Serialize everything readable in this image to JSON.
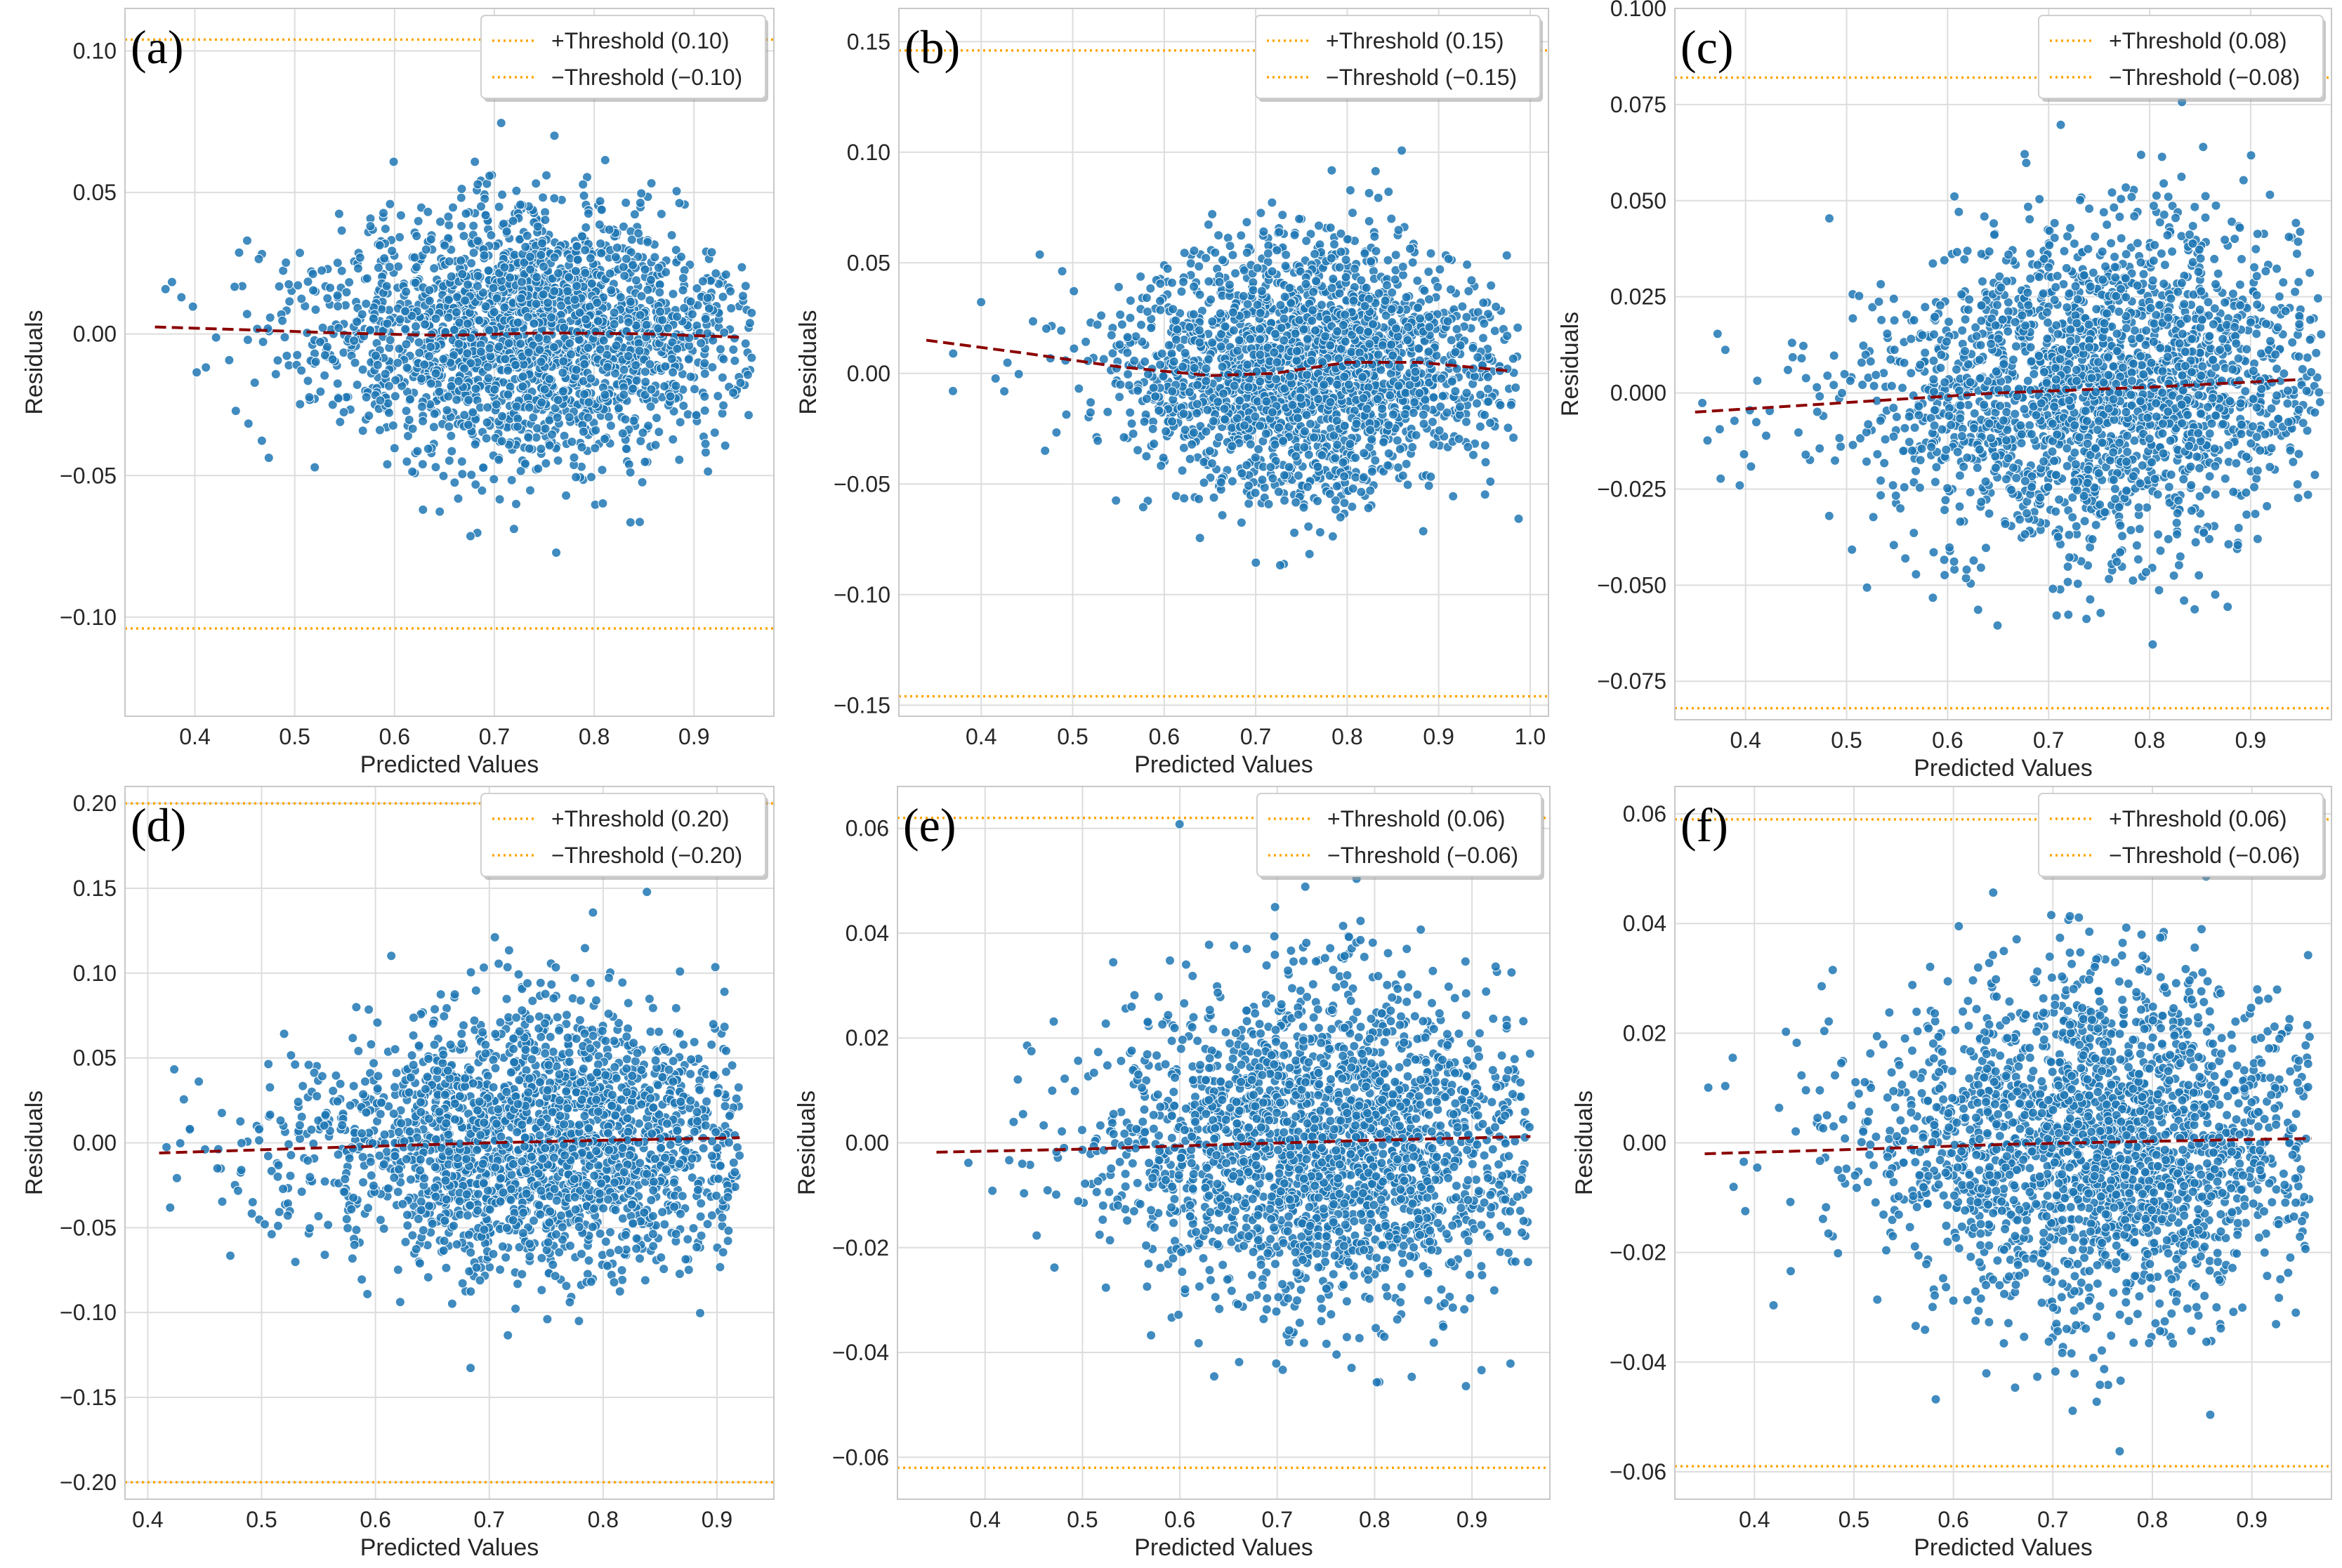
{
  "colors": {
    "points": "#1f77b4",
    "points_edge": "#ffffff",
    "trend": "#8b0000",
    "threshold": "#ffa500",
    "grid": "#dddddd",
    "frame": "#c8c8c8",
    "background": "#ffffff"
  },
  "chart_data": [
    {
      "type": "scatter",
      "panel_label": "(a)",
      "xlabel": "Predicted Values",
      "ylabel": "Residuals",
      "xlim": [
        0.33,
        0.98
      ],
      "ylim": [
        -0.135,
        0.115
      ],
      "xticks": [
        0.4,
        0.5,
        0.6,
        0.7,
        0.8,
        0.9
      ],
      "xtick_labels": [
        "0.4",
        "0.5",
        "0.6",
        "0.7",
        "0.8",
        "0.9"
      ],
      "yticks": [
        -0.1,
        -0.05,
        0.0,
        0.05,
        0.1
      ],
      "ytick_labels": [
        "−0.10",
        "−0.05",
        "0.00",
        "0.05",
        "0.10"
      ],
      "thresholds": [
        0.104,
        -0.104
      ],
      "legend": [
        "+Threshold (0.10)",
        "−Threshold (−0.10)"
      ],
      "trend": {
        "x": [
          0.36,
          0.45,
          0.55,
          0.65,
          0.75,
          0.85,
          0.95
        ],
        "y": [
          0.0025,
          0.0015,
          0.0003,
          -0.0005,
          0.0004,
          0.0001,
          -0.0012
        ]
      },
      "scatter_summary": {
        "x_center": 0.74,
        "x_spread": 0.11,
        "x_min": 0.35,
        "x_max": 0.96,
        "y_sd": 0.021,
        "count": 2200
      }
    },
    {
      "type": "scatter",
      "panel_label": "(b)",
      "xlabel": "Predicted Values",
      "ylabel": "Residuals",
      "xlim": [
        0.31,
        1.02
      ],
      "ylim": [
        -0.155,
        0.165
      ],
      "xticks": [
        0.4,
        0.5,
        0.6,
        0.7,
        0.8,
        0.9,
        1.0
      ],
      "xtick_labels": [
        "0.4",
        "0.5",
        "0.6",
        "0.7",
        "0.8",
        "0.9",
        "1.0"
      ],
      "yticks": [
        -0.15,
        -0.1,
        -0.05,
        0.0,
        0.05,
        0.1,
        0.15
      ],
      "ytick_labels": [
        "−0.15",
        "−0.10",
        "−0.05",
        "0.00",
        "0.05",
        "0.10",
        "0.15"
      ],
      "thresholds": [
        0.146,
        -0.146
      ],
      "legend": [
        "+Threshold (0.15)",
        "−Threshold (−0.15)"
      ],
      "trend": {
        "x": [
          0.34,
          0.45,
          0.55,
          0.65,
          0.72,
          0.8,
          0.88,
          0.98
        ],
        "y": [
          0.015,
          0.009,
          0.003,
          -0.001,
          0.0,
          0.005,
          0.005,
          0.001
        ]
      },
      "scatter_summary": {
        "x_center": 0.76,
        "x_spread": 0.1,
        "x_min": 0.34,
        "x_max": 0.99,
        "y_sd": 0.028,
        "count": 2200
      }
    },
    {
      "type": "scatter",
      "panel_label": "(c)",
      "xlabel": "Predicted Values",
      "ylabel": "Residuals",
      "xlim": [
        0.33,
        0.98
      ],
      "ylim": [
        -0.085,
        0.1
      ],
      "xticks": [
        0.4,
        0.5,
        0.6,
        0.7,
        0.8,
        0.9
      ],
      "xtick_labels": [
        "0.4",
        "0.5",
        "0.6",
        "0.7",
        "0.8",
        "0.9"
      ],
      "yticks": [
        -0.075,
        -0.05,
        -0.025,
        0.0,
        0.025,
        0.05,
        0.075,
        0.1
      ],
      "ytick_labels": [
        "−0.075",
        "−0.050",
        "−0.025",
        "0.000",
        "0.025",
        "0.050",
        "0.075",
        "0.100"
      ],
      "thresholds": [
        0.082,
        -0.082
      ],
      "legend": [
        "+Threshold (0.08)",
        "−Threshold (−0.08)"
      ],
      "trend": {
        "x": [
          0.35,
          0.5,
          0.65,
          0.8,
          0.95
        ],
        "y": [
          -0.005,
          -0.0025,
          0.0,
          0.0015,
          0.0035
        ]
      },
      "scatter_summary": {
        "x_center": 0.76,
        "x_spread": 0.11,
        "x_min": 0.35,
        "x_max": 0.97,
        "y_sd": 0.021,
        "count": 2200
      }
    },
    {
      "type": "scatter",
      "panel_label": "(d)",
      "xlabel": "Predicted Values",
      "ylabel": "Residuals",
      "xlim": [
        0.38,
        0.95
      ],
      "ylim": [
        -0.21,
        0.21
      ],
      "xticks": [
        0.4,
        0.5,
        0.6,
        0.7,
        0.8,
        0.9
      ],
      "xtick_labels": [
        "0.4",
        "0.5",
        "0.6",
        "0.7",
        "0.8",
        "0.9"
      ],
      "yticks": [
        -0.2,
        -0.15,
        -0.1,
        -0.05,
        0.0,
        0.05,
        0.1,
        0.15,
        0.2
      ],
      "ytick_labels": [
        "−0.20",
        "−0.15",
        "−0.10",
        "−0.05",
        "0.00",
        "0.05",
        "0.10",
        "0.15",
        "0.20"
      ],
      "thresholds": [
        0.2,
        -0.2
      ],
      "legend": [
        "+Threshold (0.20)",
        "−Threshold (−0.20)"
      ],
      "trend": {
        "x": [
          0.41,
          0.55,
          0.7,
          0.8,
          0.92
        ],
        "y": [
          -0.006,
          -0.003,
          0.0,
          0.0015,
          0.003
        ]
      },
      "scatter_summary": {
        "x_center": 0.75,
        "x_spread": 0.1,
        "x_min": 0.41,
        "x_max": 0.92,
        "y_sd": 0.037,
        "count": 2200
      }
    },
    {
      "type": "scatter",
      "panel_label": "(e)",
      "xlabel": "Predicted Values",
      "ylabel": "Residuals",
      "xlim": [
        0.31,
        0.98
      ],
      "ylim": [
        -0.068,
        0.068
      ],
      "xticks": [
        0.4,
        0.5,
        0.6,
        0.7,
        0.8,
        0.9
      ],
      "xtick_labels": [
        "0.4",
        "0.5",
        "0.6",
        "0.7",
        "0.8",
        "0.9"
      ],
      "yticks": [
        -0.06,
        -0.04,
        -0.02,
        0.0,
        0.02,
        0.04,
        0.06
      ],
      "ytick_labels": [
        "−0.06",
        "−0.04",
        "−0.02",
        "0.00",
        "0.02",
        "0.04",
        "0.06"
      ],
      "thresholds": [
        0.062,
        -0.062
      ],
      "legend": [
        "+Threshold (0.06)",
        "−Threshold (−0.06)"
      ],
      "trend": {
        "x": [
          0.35,
          0.5,
          0.65,
          0.8,
          0.96
        ],
        "y": [
          -0.0018,
          -0.0012,
          -0.0003,
          0.0005,
          0.0012
        ]
      },
      "scatter_summary": {
        "x_center": 0.75,
        "x_spread": 0.11,
        "x_min": 0.35,
        "x_max": 0.96,
        "y_sd": 0.015,
        "count": 2200
      }
    },
    {
      "type": "scatter",
      "panel_label": "(f)",
      "xlabel": "Predicted Values",
      "ylabel": "Residuals",
      "xlim": [
        0.32,
        0.98
      ],
      "ylim": [
        -0.065,
        0.065
      ],
      "xticks": [
        0.4,
        0.5,
        0.6,
        0.7,
        0.8,
        0.9
      ],
      "xtick_labels": [
        "0.4",
        "0.5",
        "0.6",
        "0.7",
        "0.8",
        "0.9"
      ],
      "yticks": [
        -0.06,
        -0.04,
        -0.02,
        0.0,
        0.02,
        0.04,
        0.06
      ],
      "ytick_labels": [
        "−0.06",
        "−0.04",
        "−0.02",
        "0.00",
        "0.02",
        "0.04",
        "0.06"
      ],
      "thresholds": [
        0.059,
        -0.059
      ],
      "legend": [
        "+Threshold (0.06)",
        "−Threshold (−0.06)"
      ],
      "trend": {
        "x": [
          0.35,
          0.5,
          0.65,
          0.8,
          0.96
        ],
        "y": [
          -0.002,
          -0.0012,
          -0.0003,
          0.0003,
          0.0008
        ]
      },
      "scatter_summary": {
        "x_center": 0.75,
        "x_spread": 0.11,
        "x_min": 0.35,
        "x_max": 0.96,
        "y_sd": 0.015,
        "count": 2200
      }
    }
  ]
}
